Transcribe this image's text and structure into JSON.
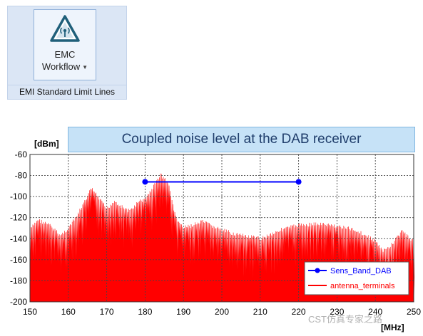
{
  "ribbon": {
    "button_line1": "EMC",
    "button_line2": "Workflow",
    "group_label": "EMI Standard Limit Lines",
    "icon": "antenna-warning-icon"
  },
  "chart_data": {
    "type": "line",
    "title": "Coupled noise level at the DAB receiver",
    "ylabel": "[dBm]",
    "xlabel": "[MHz]",
    "xlim": [
      150,
      250
    ],
    "ylim": [
      -200,
      -60
    ],
    "grid": true,
    "legend_position": "bottom-right",
    "x_ticks": [
      150,
      160,
      170,
      180,
      190,
      200,
      210,
      220,
      230,
      240,
      250
    ],
    "y_ticks": [
      -60,
      -80,
      -100,
      -120,
      -140,
      -160,
      -180,
      -200
    ],
    "series": [
      {
        "name": "Sens_Band_DAB",
        "color": "#0000ff",
        "marker": "circle",
        "x": [
          180,
          220
        ],
        "y": [
          -86,
          -86
        ]
      },
      {
        "name": "antenna_terminals",
        "color": "#ff0000",
        "x": [
          150,
          152,
          155,
          158,
          160,
          162,
          164,
          166,
          168,
          170,
          172,
          174,
          176,
          178,
          180,
          182,
          184,
          186,
          188,
          190,
          195,
          200,
          205,
          210,
          215,
          220,
          225,
          230,
          235,
          240,
          242,
          244,
          246,
          247,
          248,
          250
        ],
        "y": [
          -130,
          -120,
          -125,
          -135,
          -128,
          -118,
          -105,
          -90,
          -100,
          -110,
          -102,
          -108,
          -112,
          -104,
          -100,
          -90,
          -77,
          -85,
          -118,
          -128,
          -122,
          -130,
          -135,
          -138,
          -130,
          -125,
          -124,
          -126,
          -130,
          -140,
          -150,
          -145,
          -135,
          -130,
          -135,
          -140
        ]
      }
    ],
    "watermark": "CST仿真专家之路"
  }
}
